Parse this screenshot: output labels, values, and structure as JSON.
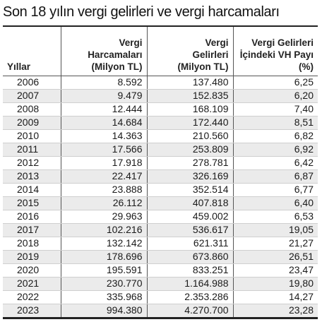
{
  "title": "Son 18 yılın vergi gelirleri ve vergi harcamaları",
  "headers": [
    "Yıllar",
    "Vergi\nHarcamaları\n(Milyon TL)",
    "Vergi\nGelirleri\n(Milyon TL)",
    "Vergi Gelirleri\nİçindeki VH Payı\n(%)"
  ],
  "rows": [
    [
      "2006",
      "8.592",
      "137.480",
      "6,25"
    ],
    [
      "2007",
      "9.479",
      "152.835",
      "6,20"
    ],
    [
      "2008",
      "12.444",
      "168.109",
      "7,40"
    ],
    [
      "2009",
      "14.684",
      "172.440",
      "8,51"
    ],
    [
      "2010",
      "14.363",
      "210.560",
      "6,82"
    ],
    [
      "2011",
      "17.566",
      "253.809",
      "6,92"
    ],
    [
      "2012",
      "17.918",
      "278.781",
      "6,42"
    ],
    [
      "2013",
      "22.417",
      "326.169",
      "6,87"
    ],
    [
      "2014",
      "23.888",
      "352.514",
      "6,77"
    ],
    [
      "2015",
      "26.112",
      "407.818",
      "6,40"
    ],
    [
      "2016",
      "29.963",
      "459.002",
      "6,53"
    ],
    [
      "2017",
      "102.216",
      "536.617",
      "19,05"
    ],
    [
      "2018",
      "132.142",
      "621.311",
      "21,27"
    ],
    [
      "2019",
      "178.696",
      "673.860",
      "26,51"
    ],
    [
      "2020",
      "195.591",
      "833.251",
      "23,47"
    ],
    [
      "2021",
      "230.770",
      "1.164.988",
      "19,80"
    ],
    [
      "2022",
      "335.968",
      "2.353.286",
      "14,27"
    ],
    [
      "2023",
      "994.380",
      "4.270.700",
      "23,28"
    ]
  ]
}
